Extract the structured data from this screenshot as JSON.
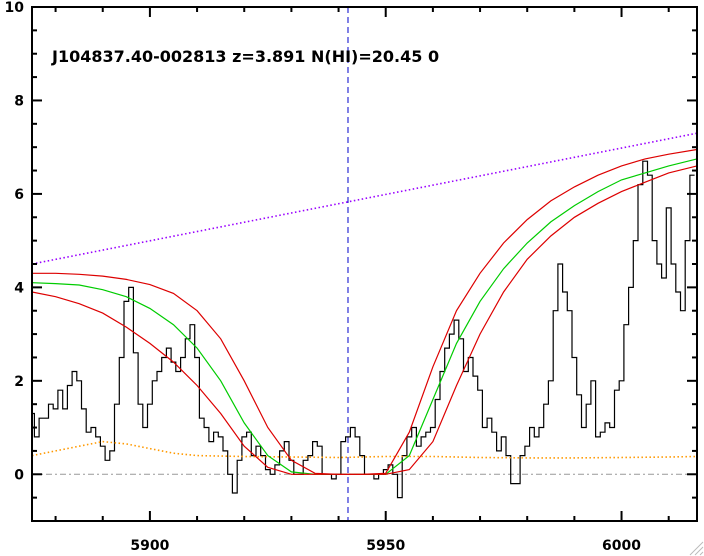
{
  "chart_data": {
    "type": "line",
    "title": "",
    "annotation": "J104837.40-002813 z=3.891 N(HI)=20.45 0",
    "xlabel": "",
    "ylabel": "",
    "xlim": [
      5875,
      6016
    ],
    "ylim": [
      -1,
      10
    ],
    "x_ticks": [
      5900,
      5950,
      6000
    ],
    "y_ticks": [
      0,
      2,
      4,
      6,
      8,
      10
    ],
    "grid": false,
    "center_line_x": 5942,
    "zero_level": 0,
    "colors": {
      "flux": "#000000",
      "error": "#ff9900",
      "continuum": "#9900ff",
      "fit": "#00cc00",
      "bounds": "#dd0000",
      "center": "#0000cc",
      "zero": "#999999"
    },
    "series": [
      {
        "role": "flux",
        "style": "step",
        "x": [
          5875,
          5876,
          5877,
          5878,
          5879,
          5880,
          5881,
          5882,
          5883,
          5884,
          5885,
          5886,
          5887,
          5888,
          5889,
          5890,
          5891,
          5892,
          5893,
          5894,
          5895,
          5896,
          5897,
          5898,
          5899,
          5900,
          5901,
          5902,
          5903,
          5904,
          5905,
          5906,
          5907,
          5908,
          5909,
          5910,
          5911,
          5912,
          5913,
          5914,
          5915,
          5916,
          5917,
          5918,
          5919,
          5920,
          5921,
          5922,
          5923,
          5924,
          5925,
          5926,
          5927,
          5928,
          5929,
          5930,
          5931,
          5932,
          5933,
          5934,
          5935,
          5936,
          5937,
          5938,
          5939,
          5940,
          5941,
          5942,
          5943,
          5944,
          5945,
          5946,
          5947,
          5948,
          5949,
          5950,
          5951,
          5952,
          5953,
          5954,
          5955,
          5956,
          5957,
          5958,
          5959,
          5960,
          5961,
          5962,
          5963,
          5964,
          5965,
          5966,
          5967,
          5968,
          5969,
          5970,
          5971,
          5972,
          5973,
          5974,
          5975,
          5976,
          5977,
          5978,
          5979,
          5980,
          5981,
          5982,
          5983,
          5984,
          5985,
          5986,
          5987,
          5988,
          5989,
          5990,
          5991,
          5992,
          5993,
          5994,
          5995,
          5996,
          5997,
          5998,
          5999,
          6000,
          6001,
          6002,
          6003,
          6004,
          6005,
          6006,
          6007,
          6008,
          6009,
          6010,
          6011,
          6012,
          6013,
          6014,
          6015
        ],
        "y": [
          1.3,
          0.8,
          1.2,
          1.2,
          1.5,
          1.4,
          1.8,
          1.4,
          1.9,
          2.2,
          2.0,
          1.4,
          0.9,
          1.0,
          0.8,
          0.6,
          0.3,
          0.5,
          1.5,
          2.5,
          3.7,
          4.0,
          2.6,
          1.5,
          1.0,
          1.5,
          2.0,
          2.2,
          2.5,
          2.7,
          2.4,
          2.2,
          2.5,
          2.9,
          3.2,
          2.5,
          1.2,
          1.0,
          0.7,
          0.9,
          0.8,
          0.5,
          0.0,
          -0.4,
          0.3,
          0.8,
          0.9,
          0.4,
          0.6,
          0.4,
          0.1,
          0.0,
          0.2,
          0.5,
          0.7,
          0.3,
          0.0,
          0.0,
          0.3,
          0.4,
          0.7,
          0.6,
          0.0,
          0.0,
          -0.1,
          0.0,
          0.7,
          0.8,
          1.0,
          0.8,
          0.4,
          0.0,
          0.0,
          -0.1,
          0.0,
          0.1,
          0.2,
          0.0,
          -0.5,
          0.4,
          0.8,
          1.0,
          0.6,
          0.8,
          0.9,
          1.0,
          1.6,
          2.2,
          2.7,
          3.0,
          3.3,
          2.9,
          2.2,
          2.5,
          2.1,
          1.8,
          1.0,
          1.2,
          0.9,
          0.5,
          0.8,
          0.4,
          -0.2,
          -0.2,
          0.4,
          0.6,
          1.0,
          0.8,
          1.0,
          1.5,
          2.0,
          3.5,
          4.5,
          3.9,
          3.5,
          2.5,
          1.7,
          1.0,
          1.5,
          2.0,
          0.8,
          0.9,
          1.1,
          1.0,
          1.8,
          2.0,
          3.2,
          4.0,
          5.0,
          6.2,
          6.7,
          6.4,
          5.0,
          4.5,
          4.2,
          5.7,
          4.5,
          3.9,
          3.5,
          5.0,
          6.4
        ]
      },
      {
        "role": "error",
        "style": "dotted",
        "x": [
          5875,
          5880,
          5885,
          5890,
          5895,
          5900,
          5905,
          5910,
          5920,
          5930,
          5940,
          5950,
          5960,
          5970,
          5980,
          5990,
          6000,
          6010,
          6016
        ],
        "y": [
          0.4,
          0.5,
          0.6,
          0.7,
          0.65,
          0.55,
          0.45,
          0.4,
          0.38,
          0.37,
          0.36,
          0.38,
          0.38,
          0.36,
          0.35,
          0.35,
          0.36,
          0.37,
          0.38
        ]
      },
      {
        "role": "continuum",
        "style": "dotted",
        "x": [
          5875,
          6016
        ],
        "y": [
          4.5,
          7.3
        ]
      },
      {
        "role": "fit",
        "style": "solid",
        "x": [
          5875,
          5880,
          5885,
          5890,
          5895,
          5900,
          5905,
          5910,
          5915,
          5920,
          5925,
          5930,
          5935,
          5940,
          5945,
          5950,
          5955,
          5960,
          5965,
          5970,
          5975,
          5980,
          5985,
          5990,
          5995,
          6000,
          6005,
          6010,
          6016
        ],
        "y": [
          4.1,
          4.08,
          4.05,
          3.95,
          3.8,
          3.55,
          3.2,
          2.7,
          2.0,
          1.1,
          0.4,
          0.05,
          0.0,
          0.0,
          0.0,
          0.0,
          0.4,
          1.6,
          2.8,
          3.7,
          4.4,
          4.95,
          5.4,
          5.75,
          6.05,
          6.3,
          6.45,
          6.6,
          6.75
        ]
      },
      {
        "role": "upper-bound",
        "style": "solid",
        "x": [
          5875,
          5880,
          5885,
          5890,
          5895,
          5900,
          5905,
          5910,
          5915,
          5920,
          5925,
          5930,
          5935,
          5940,
          5945,
          5950,
          5955,
          5960,
          5965,
          5970,
          5975,
          5980,
          5985,
          5990,
          5995,
          6000,
          6005,
          6010,
          6016
        ],
        "y": [
          4.3,
          4.3,
          4.28,
          4.24,
          4.17,
          4.06,
          3.87,
          3.5,
          2.9,
          2.0,
          1.0,
          0.3,
          0.02,
          0.0,
          0.0,
          0.02,
          0.9,
          2.3,
          3.5,
          4.3,
          4.95,
          5.45,
          5.85,
          6.15,
          6.4,
          6.6,
          6.75,
          6.85,
          6.95
        ]
      },
      {
        "role": "lower-bound",
        "style": "solid",
        "x": [
          5875,
          5880,
          5885,
          5890,
          5895,
          5900,
          5905,
          5910,
          5915,
          5920,
          5925,
          5930,
          5935,
          5940,
          5945,
          5950,
          5955,
          5960,
          5965,
          5970,
          5975,
          5980,
          5985,
          5990,
          5995,
          6000,
          6005,
          6010,
          6016
        ],
        "y": [
          3.9,
          3.8,
          3.65,
          3.45,
          3.15,
          2.8,
          2.4,
          1.9,
          1.3,
          0.6,
          0.15,
          0.0,
          0.0,
          0.0,
          0.0,
          0.0,
          0.1,
          0.7,
          1.9,
          3.0,
          3.9,
          4.6,
          5.1,
          5.5,
          5.8,
          6.05,
          6.25,
          6.45,
          6.6
        ]
      }
    ]
  }
}
